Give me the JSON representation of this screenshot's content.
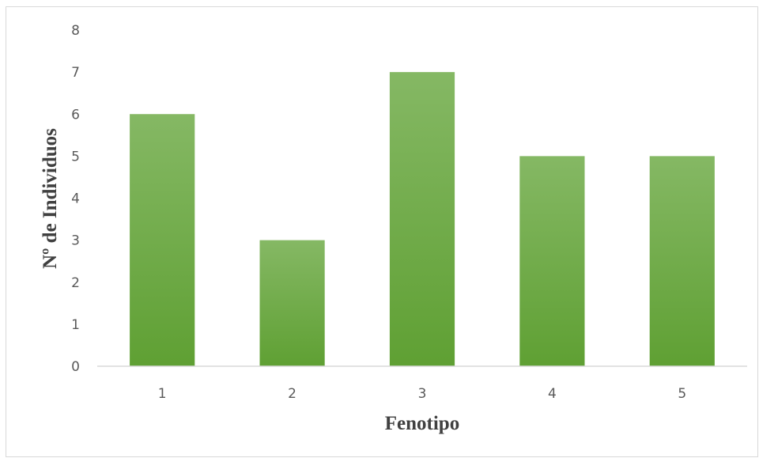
{
  "chart_data": {
    "type": "bar",
    "categories": [
      "1",
      "2",
      "3",
      "4",
      "5"
    ],
    "values": [
      6,
      3,
      7,
      5,
      5
    ],
    "xlabel": "Fenotipo",
    "ylabel": "Nº de Individuos",
    "ylim": [
      0,
      8
    ],
    "yticks": [
      "0",
      "1",
      "2",
      "3",
      "4",
      "5",
      "6",
      "7",
      "8"
    ],
    "grid": false,
    "legend": "none",
    "colors": {
      "bar_top": "#85b864",
      "bar_bottom": "#5fa033",
      "axis": "#d9d9d9",
      "tick_text": "#595959",
      "title_text": "#404040"
    }
  }
}
